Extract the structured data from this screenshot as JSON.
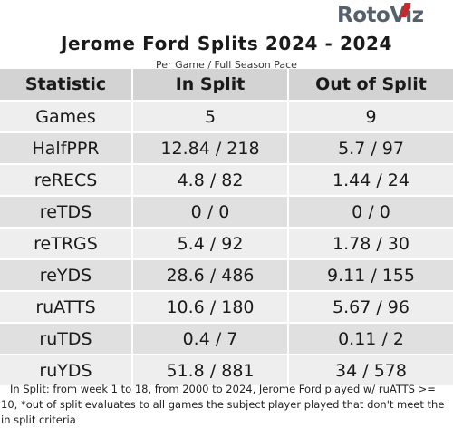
{
  "logo": {
    "text_roto": "Roto",
    "text_viz": "Viz",
    "accent_color": "#c8282c",
    "text_color": "#56606a"
  },
  "title": "Jerome Ford Splits 2024 - 2024",
  "subtitle": "Per Game / Full Season Pace",
  "table": {
    "headers": [
      "Statistic",
      "In Split",
      "Out of Split"
    ],
    "rows": [
      {
        "stat": "Games",
        "in_split": "5",
        "out_split": "9"
      },
      {
        "stat": "HalfPPR",
        "in_split": "12.84 / 218",
        "out_split": "5.7 / 97"
      },
      {
        "stat": "reRECS",
        "in_split": "4.8 / 82",
        "out_split": "1.44 / 24"
      },
      {
        "stat": "reTDS",
        "in_split": "0 / 0",
        "out_split": "0 / 0"
      },
      {
        "stat": "reTRGS",
        "in_split": "5.4 / 92",
        "out_split": "1.78 / 30"
      },
      {
        "stat": "reYDS",
        "in_split": "28.6 / 486",
        "out_split": "9.11 / 155"
      },
      {
        "stat": "ruATTS",
        "in_split": "10.6 / 180",
        "out_split": "5.67 / 96"
      },
      {
        "stat": "ruTDS",
        "in_split": "0.4 / 7",
        "out_split": "0.11 / 2"
      },
      {
        "stat": "ruYDS",
        "in_split": "51.8 / 881",
        "out_split": "34 / 578"
      }
    ],
    "header_bg": "#d3d3d3",
    "row_bg_odd": "#eeeeee",
    "row_bg_even": "#e0e0e0"
  },
  "footnote": "In Split: from week 1 to 18, from 2000 to 2024, Jerome Ford played w/ ruATTS >= 10,  *out of split evaluates to all games the subject player played that don't meet the in split criteria"
}
